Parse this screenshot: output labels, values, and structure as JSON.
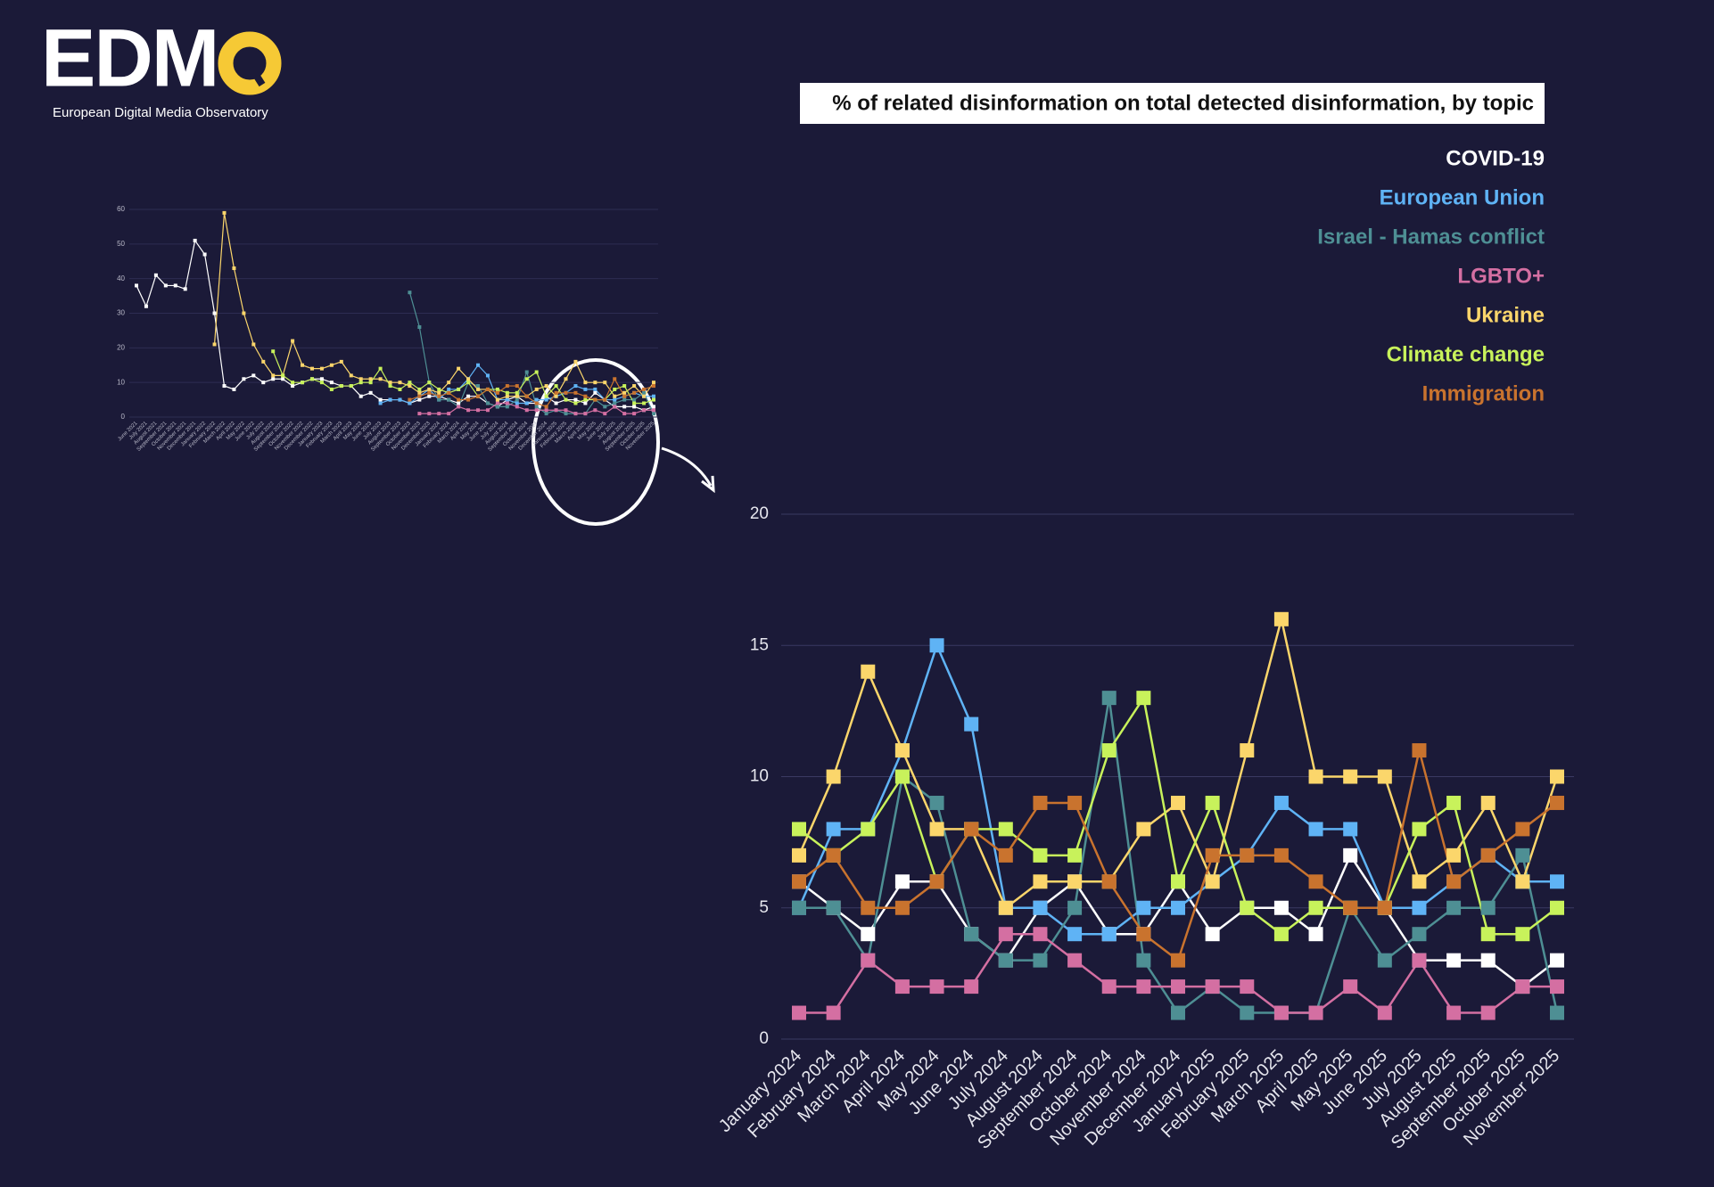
{
  "header": {
    "logo": "EDM",
    "subtitle": "European Digital Media Observatory"
  },
  "chart_data": [
    {
      "type": "line",
      "title": "% of related disinformation on total detected disinformation, by topic",
      "categories": [
        "January 2024",
        "February 2024",
        "March 2024",
        "April 2024",
        "May 2024",
        "June 2024",
        "July 2024",
        "August 2024",
        "September 2024",
        "October 2024",
        "November 2024",
        "December 2024",
        "January 2025",
        "February 2025",
        "March 2025",
        "April 2025",
        "May 2025",
        "June 2025",
        "July 2025",
        "August 2025",
        "September 2025",
        "October 2025",
        "November 2025"
      ],
      "series": [
        {
          "name": "COVID-19",
          "color": "#ffffff",
          "values": [
            6,
            5,
            4,
            6,
            6,
            4,
            3,
            5,
            6,
            4,
            4,
            6,
            4,
            5,
            5,
            4,
            7,
            5,
            3,
            3,
            3,
            2,
            3
          ]
        },
        {
          "name": "European Union",
          "color": "#5fb3f5",
          "values": [
            5,
            8,
            8,
            11,
            15,
            12,
            5,
            5,
            4,
            4,
            5,
            5,
            6,
            7,
            9,
            8,
            8,
            5,
            5,
            6,
            7,
            6,
            6
          ]
        },
        {
          "name": "Israel - Hamas conflict",
          "color": "#4e8f94",
          "values": [
            5,
            5,
            3,
            10,
            9,
            4,
            3,
            3,
            5,
            13,
            3,
            1,
            2,
            1,
            1,
            1,
            5,
            3,
            4,
            5,
            5,
            7,
            1
          ]
        },
        {
          "name": "LGBTO+",
          "color": "#d46fa2",
          "values": [
            1,
            1,
            3,
            2,
            2,
            2,
            4,
            4,
            3,
            2,
            2,
            2,
            2,
            2,
            1,
            1,
            2,
            1,
            3,
            1,
            1,
            2,
            2
          ]
        },
        {
          "name": "Ukraine",
          "color": "#fbd66b",
          "values": [
            7,
            10,
            14,
            11,
            8,
            8,
            5,
            6,
            6,
            6,
            8,
            9,
            6,
            11,
            16,
            10,
            10,
            10,
            6,
            7,
            9,
            6,
            10
          ]
        },
        {
          "name": "Climate change",
          "color": "#c8f25b",
          "values": [
            8,
            7,
            8,
            10,
            6,
            8,
            8,
            7,
            7,
            11,
            13,
            6,
            9,
            5,
            4,
            5,
            5,
            5,
            8,
            9,
            4,
            4,
            5
          ]
        },
        {
          "name": "Immigration",
          "color": "#c9732e",
          "values": [
            6,
            7,
            5,
            5,
            6,
            8,
            7,
            9,
            9,
            6,
            4,
            3,
            7,
            7,
            7,
            6,
            5,
            5,
            11,
            6,
            7,
            8,
            9
          ]
        }
      ],
      "ylim": [
        0,
        20
      ],
      "yticks": [
        0,
        5,
        10,
        15,
        20
      ],
      "grid": true,
      "legend": "top-right"
    },
    {
      "type": "line",
      "categories": [
        "June 2021",
        "July 2021",
        "August 2021",
        "September 2021",
        "October 2021",
        "November 2021",
        "December 2021",
        "January 2022",
        "February 2022",
        "March 2022",
        "April 2022",
        "May 2022",
        "June 2022",
        "July 2022",
        "August 2022",
        "September 2022",
        "October 2022",
        "November 2022",
        "December 2022",
        "January 2023",
        "February 2023",
        "March 2023",
        "April 2023",
        "May 2023",
        "June 2023",
        "July 2023",
        "August 2023",
        "September 2023",
        "October 2023",
        "November 2023",
        "December 2023",
        "January 2024",
        "February 2024",
        "March 2024",
        "April 2024",
        "May 2024",
        "June 2024",
        "July 2024",
        "August 2024",
        "September 2024",
        "October 2024",
        "November 2024",
        "December 2024",
        "January 2025",
        "February 2025",
        "March 2025",
        "April 2025",
        "May 2025",
        "June 2025",
        "July 2025",
        "August 2025",
        "September 2025",
        "October 2025",
        "November 2025"
      ],
      "series": [
        {
          "color": "#ffffff",
          "values": [
            38,
            32,
            41,
            38,
            38,
            37,
            51,
            47,
            30,
            9,
            8,
            11,
            12,
            10,
            11,
            11,
            9,
            10,
            11,
            11,
            10,
            9,
            9,
            6,
            7,
            5,
            5,
            5,
            4,
            5,
            6,
            6,
            5,
            4,
            6,
            6,
            4,
            3,
            5,
            6,
            4,
            4,
            6,
            4,
            5,
            5,
            4,
            7,
            5,
            3,
            3,
            3,
            2,
            3
          ]
        },
        {
          "color": "#5fb3f5",
          "values": [
            null,
            null,
            null,
            null,
            null,
            null,
            null,
            null,
            null,
            null,
            null,
            null,
            null,
            null,
            null,
            null,
            null,
            null,
            null,
            null,
            null,
            null,
            null,
            null,
            null,
            4,
            5,
            5,
            4,
            6,
            8,
            5,
            8,
            8,
            11,
            15,
            12,
            5,
            5,
            4,
            4,
            5,
            5,
            6,
            7,
            9,
            8,
            8,
            5,
            5,
            6,
            7,
            6,
            6
          ]
        },
        {
          "color": "#4e8f94",
          "values": [
            null,
            null,
            null,
            null,
            null,
            null,
            null,
            null,
            null,
            null,
            null,
            null,
            null,
            null,
            null,
            null,
            null,
            null,
            null,
            null,
            null,
            null,
            null,
            null,
            null,
            null,
            null,
            null,
            36,
            26,
            10,
            5,
            5,
            3,
            10,
            9,
            4,
            3,
            3,
            5,
            13,
            3,
            1,
            2,
            1,
            1,
            1,
            5,
            3,
            4,
            5,
            5,
            7,
            1
          ]
        },
        {
          "color": "#d46fa2",
          "values": [
            null,
            null,
            null,
            null,
            null,
            null,
            null,
            null,
            null,
            null,
            null,
            null,
            null,
            null,
            null,
            null,
            null,
            null,
            null,
            null,
            null,
            null,
            null,
            null,
            null,
            null,
            null,
            null,
            null,
            1,
            1,
            1,
            1,
            3,
            2,
            2,
            2,
            4,
            4,
            3,
            2,
            2,
            2,
            2,
            2,
            1,
            1,
            2,
            1,
            3,
            1,
            1,
            2,
            2
          ]
        },
        {
          "color": "#fbd66b",
          "values": [
            null,
            null,
            null,
            null,
            null,
            null,
            null,
            null,
            21,
            59,
            43,
            30,
            21,
            16,
            12,
            12,
            22,
            15,
            14,
            14,
            15,
            16,
            12,
            11,
            11,
            11,
            10,
            10,
            9,
            7,
            8,
            7,
            10,
            14,
            11,
            8,
            8,
            5,
            6,
            6,
            6,
            8,
            9,
            6,
            11,
            16,
            10,
            10,
            10,
            6,
            7,
            9,
            6,
            10
          ]
        },
        {
          "color": "#c8f25b",
          "values": [
            null,
            null,
            null,
            null,
            null,
            null,
            null,
            null,
            null,
            null,
            null,
            null,
            null,
            null,
            19,
            12,
            10,
            10,
            11,
            10,
            8,
            9,
            9,
            10,
            10,
            14,
            9,
            8,
            10,
            8,
            10,
            8,
            7,
            8,
            10,
            6,
            8,
            8,
            7,
            7,
            11,
            13,
            6,
            9,
            5,
            4,
            5,
            5,
            5,
            8,
            9,
            4,
            4,
            5
          ]
        },
        {
          "color": "#c9732e",
          "values": [
            null,
            null,
            null,
            null,
            null,
            null,
            null,
            null,
            null,
            null,
            null,
            null,
            null,
            null,
            null,
            null,
            null,
            null,
            null,
            null,
            null,
            null,
            null,
            null,
            null,
            null,
            null,
            null,
            5,
            6,
            7,
            6,
            7,
            5,
            5,
            6,
            8,
            7,
            9,
            9,
            6,
            4,
            3,
            7,
            7,
            7,
            6,
            5,
            5,
            11,
            6,
            7,
            8,
            9
          ]
        }
      ],
      "ylim": [
        0,
        60
      ],
      "yticks": [
        0,
        10,
        20,
        30,
        40,
        50,
        60
      ],
      "grid": true
    }
  ]
}
